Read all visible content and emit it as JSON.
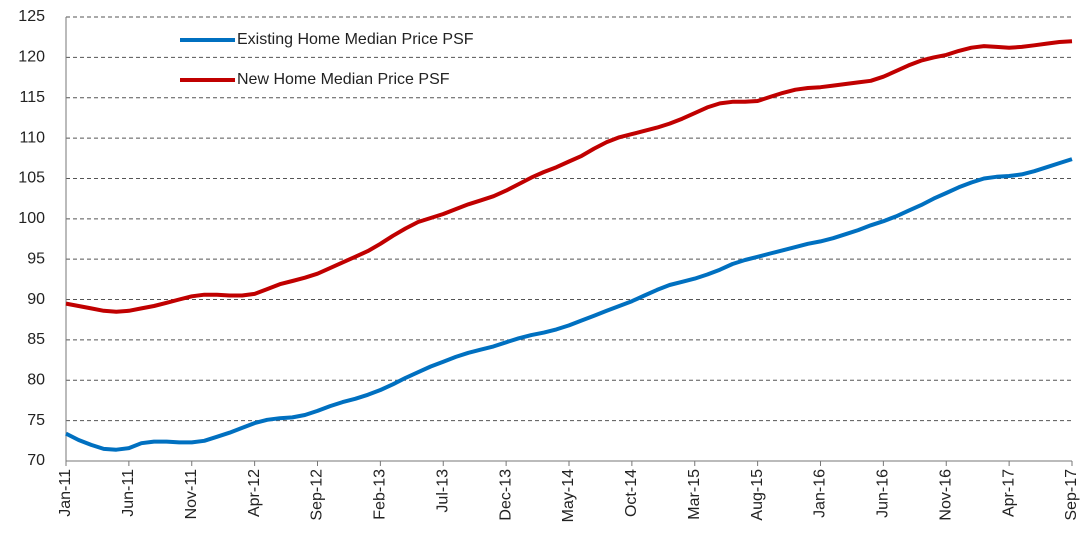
{
  "chart_data": {
    "type": "line",
    "categories": [
      "Jan-11",
      null,
      null,
      null,
      null,
      "Jun-11",
      null,
      null,
      null,
      null,
      "Nov-11",
      null,
      null,
      null,
      null,
      "Apr-12",
      null,
      null,
      null,
      null,
      "Sep-12",
      null,
      null,
      null,
      null,
      "Feb-13",
      null,
      null,
      null,
      null,
      "Jul-13",
      null,
      null,
      null,
      null,
      "Dec-13",
      null,
      null,
      null,
      null,
      "May-14",
      null,
      null,
      null,
      null,
      "Oct-14",
      null,
      null,
      null,
      null,
      "Mar-15",
      null,
      null,
      null,
      null,
      "Aug-15",
      null,
      null,
      null,
      null,
      "Jan-16",
      null,
      null,
      null,
      null,
      "Jun-16",
      null,
      null,
      null,
      null,
      "Nov-16",
      null,
      null,
      null,
      null,
      "Apr-17",
      null,
      null,
      null,
      null,
      "Sep-17"
    ],
    "series": [
      {
        "name": "Existing Home Median Price PSF",
        "color": "#0070c0",
        "values": [
          73.4,
          72.6,
          72.0,
          71.5,
          71.4,
          71.6,
          72.2,
          72.4,
          72.4,
          72.3,
          72.3,
          72.5,
          73.0,
          73.5,
          74.1,
          74.7,
          75.1,
          75.3,
          75.4,
          75.7,
          76.2,
          76.8,
          77.3,
          77.7,
          78.2,
          78.8,
          79.5,
          80.3,
          81.0,
          81.7,
          82.3,
          82.9,
          83.4,
          83.8,
          84.2,
          84.7,
          85.2,
          85.6,
          85.9,
          86.3,
          86.8,
          87.4,
          88.0,
          88.6,
          89.2,
          89.8,
          90.5,
          91.2,
          91.8,
          92.2,
          92.6,
          93.1,
          93.7,
          94.4,
          94.9,
          95.3,
          95.7,
          96.1,
          96.5,
          96.9,
          97.2,
          97.6,
          98.1,
          98.6,
          99.2,
          99.7,
          100.3,
          101.0,
          101.7,
          102.5,
          103.2,
          103.9,
          104.5,
          105.0,
          105.2,
          105.3,
          105.5,
          105.9,
          106.4,
          106.9,
          107.4
        ]
      },
      {
        "name": "New Home Median Price PSF",
        "color": "#c00000",
        "values": [
          89.5,
          89.2,
          88.9,
          88.6,
          88.5,
          88.6,
          88.9,
          89.2,
          89.6,
          90.0,
          90.4,
          90.6,
          90.6,
          90.5,
          90.5,
          90.7,
          91.3,
          91.9,
          92.3,
          92.7,
          93.2,
          93.9,
          94.6,
          95.3,
          96.0,
          96.9,
          97.9,
          98.8,
          99.6,
          100.1,
          100.6,
          101.2,
          101.8,
          102.3,
          102.8,
          103.5,
          104.3,
          105.1,
          105.8,
          106.4,
          107.1,
          107.8,
          108.7,
          109.5,
          110.1,
          110.5,
          110.9,
          111.3,
          111.8,
          112.4,
          113.1,
          113.8,
          114.3,
          114.5,
          114.5,
          114.6,
          115.1,
          115.6,
          116.0,
          116.2,
          116.3,
          116.5,
          116.7,
          116.9,
          117.1,
          117.6,
          118.3,
          119.0,
          119.6,
          120.0,
          120.3,
          120.8,
          121.2,
          121.4,
          121.3,
          121.2,
          121.3,
          121.5,
          121.7,
          121.9,
          122.0
        ]
      }
    ],
    "ylim": [
      70,
      125
    ],
    "yticks": [
      70,
      75,
      80,
      85,
      90,
      95,
      100,
      105,
      110,
      115,
      120,
      125
    ],
    "grid": true,
    "legend": "upper left"
  }
}
